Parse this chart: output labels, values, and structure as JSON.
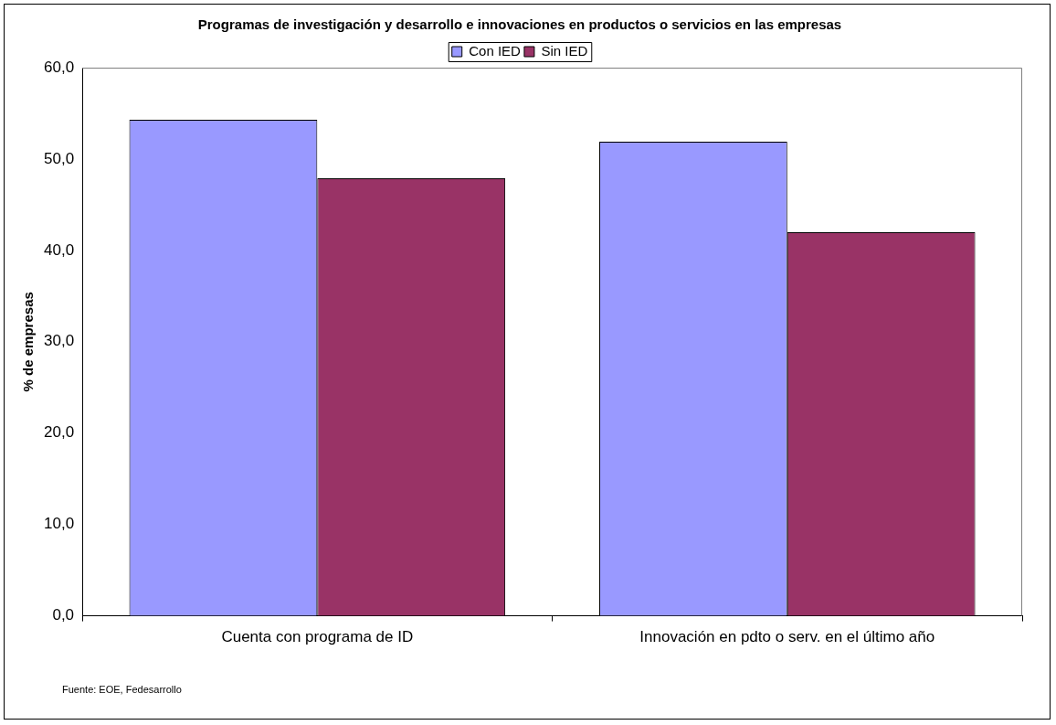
{
  "chart_data": {
    "type": "bar",
    "title": "Programas de investigación y desarrollo e innovaciones en productos o servicios en las empresas",
    "ylabel": "% de empresas",
    "categories": [
      "Cuenta con programa de ID",
      "Innovación en pdto o serv. en el último año"
    ],
    "series": [
      {
        "name": "Con IED",
        "color": "#9999ff",
        "values": [
          54.3,
          51.9
        ]
      },
      {
        "name": "Sin IED",
        "color": "#993366",
        "values": [
          47.9,
          42.0
        ]
      }
    ],
    "ylim": [
      0,
      60
    ],
    "yticks": [
      {
        "value": 0,
        "label": "0,0"
      },
      {
        "value": 10,
        "label": "10,0"
      },
      {
        "value": 20,
        "label": "20,0"
      },
      {
        "value": 30,
        "label": "30,0"
      },
      {
        "value": 40,
        "label": "40,0"
      },
      {
        "value": 50,
        "label": "50,0"
      },
      {
        "value": 60,
        "label": "60,0"
      }
    ],
    "grid": false,
    "legend": "top",
    "annotations": [
      "Fuente: EOE, Fedesarrollo"
    ]
  }
}
